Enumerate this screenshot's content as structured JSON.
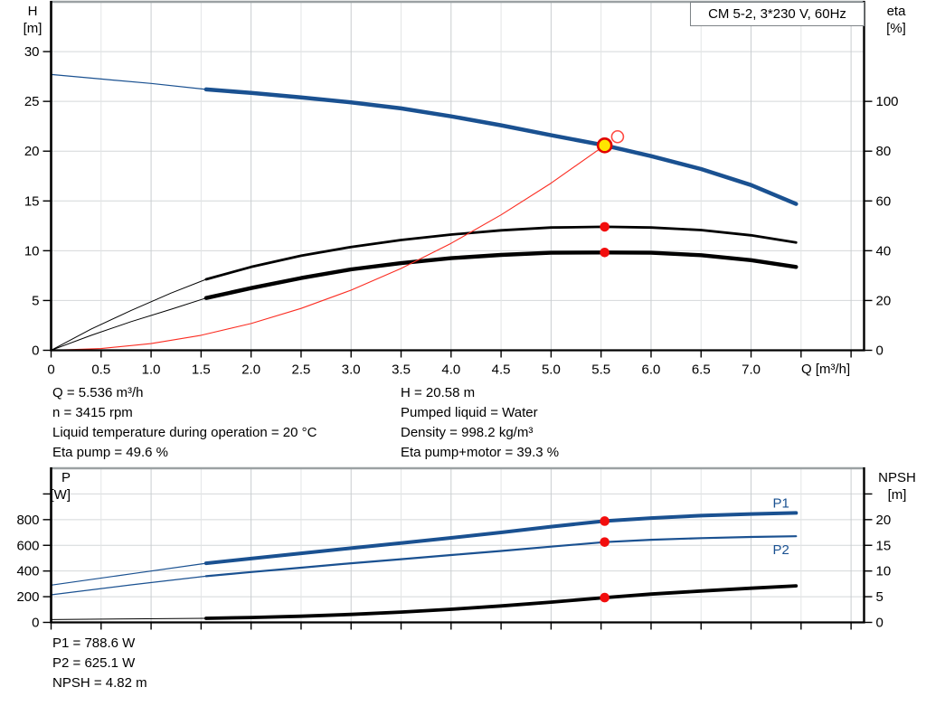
{
  "title_box": {
    "text": "CM 5-2, 3*230 V, 60Hz"
  },
  "colors": {
    "curve_blue": "#1a5191",
    "curve_black": "#000000",
    "curve_red": "#fb2d22",
    "dot_red": "#f20d0d",
    "duty_yellow": "#ffe600",
    "duty_ring": "#e00000",
    "open_ring": "#ff4a42",
    "grid_major": "#c9cdd0",
    "grid_minor": "#e3e5e6",
    "grid_h": "#d4d7d9",
    "border_gray": "#9ba1a3",
    "axis_black": "#000000"
  },
  "info_top": {
    "left": [
      "Q = 5.536 m³/h",
      "n = 3415 rpm",
      "Liquid temperature during operation = 20 °C",
      "Eta pump = 49.6 %"
    ],
    "right": [
      "H = 20.58 m",
      "Pumped liquid = Water",
      "Density = 998.2 kg/m³",
      "Eta pump+motor = 39.3 %"
    ]
  },
  "info_bottom": [
    "P1 = 788.6 W",
    "P2 = 625.1 W",
    "NPSH = 4.82 m"
  ],
  "chart_data": [
    {
      "type": "line",
      "x": {
        "label": "Q [m³/h]",
        "min": 0,
        "max": 8.13,
        "tick_step": 0.5,
        "labeled_max": 7
      },
      "y_left": {
        "label_lines": [
          "H",
          "[m]"
        ],
        "min": 0,
        "max": 35,
        "ticks": [
          0,
          5,
          10,
          15,
          20,
          25,
          30
        ],
        "extra_ticks": []
      },
      "y_right": {
        "label_lines": [
          "eta",
          "[%]"
        ],
        "min": 0,
        "max": 140,
        "ticks": [
          0,
          20,
          40,
          60,
          80,
          100
        ],
        "extra_ticks": []
      },
      "series": [
        {
          "name": "head-curve-ext",
          "axis": "left",
          "color": "blue",
          "width": 1.2,
          "points": [
            [
              0,
              27.7
            ],
            [
              0.5,
              27.25
            ],
            [
              1.0,
              26.8
            ],
            [
              1.55,
              26.2
            ]
          ]
        },
        {
          "name": "head-curve",
          "axis": "left",
          "color": "blue",
          "width": 4.5,
          "points": [
            [
              1.55,
              26.2
            ],
            [
              2,
              25.85
            ],
            [
              2.5,
              25.4
            ],
            [
              3,
              24.9
            ],
            [
              3.5,
              24.3
            ],
            [
              4,
              23.5
            ],
            [
              4.5,
              22.6
            ],
            [
              5,
              21.6
            ],
            [
              5.536,
              20.58
            ],
            [
              6,
              19.5
            ],
            [
              6.5,
              18.2
            ],
            [
              7,
              16.6
            ],
            [
              7.45,
              14.7
            ]
          ]
        },
        {
          "name": "eta-pump-curve-ext",
          "axis": "right",
          "color": "black",
          "width": 1,
          "points": [
            [
              0,
              0
            ],
            [
              0.4,
              8.5
            ],
            [
              0.8,
              16
            ],
            [
              1.2,
              23
            ],
            [
              1.55,
              28.5
            ]
          ]
        },
        {
          "name": "eta-pump-curve",
          "axis": "right",
          "color": "black",
          "width": 2.8,
          "points": [
            [
              1.55,
              28.5
            ],
            [
              2,
              33.5
            ],
            [
              2.5,
              38
            ],
            [
              3,
              41.5
            ],
            [
              3.5,
              44.3
            ],
            [
              4,
              46.5
            ],
            [
              4.5,
              48.2
            ],
            [
              5,
              49.3
            ],
            [
              5.536,
              49.6
            ],
            [
              6,
              49.3
            ],
            [
              6.5,
              48.3
            ],
            [
              7,
              46.2
            ],
            [
              7.45,
              43.3
            ]
          ]
        },
        {
          "name": "eta-pump-motor-curve-ext",
          "axis": "right",
          "color": "black",
          "width": 1,
          "points": [
            [
              0,
              0
            ],
            [
              0.4,
              6
            ],
            [
              0.8,
              11.5
            ],
            [
              1.2,
              16.5
            ],
            [
              1.55,
              21
            ]
          ]
        },
        {
          "name": "eta-pump-motor-curve",
          "axis": "right",
          "color": "black",
          "width": 4.4,
          "points": [
            [
              1.55,
              21
            ],
            [
              2,
              25
            ],
            [
              2.5,
              29
            ],
            [
              3,
              32.5
            ],
            [
              3.5,
              35
            ],
            [
              4,
              37
            ],
            [
              4.5,
              38.3
            ],
            [
              5,
              39.2
            ],
            [
              5.536,
              39.3
            ],
            [
              6,
              39.2
            ],
            [
              6.5,
              38.2
            ],
            [
              7,
              36.2
            ],
            [
              7.45,
              33.5
            ]
          ]
        },
        {
          "name": "system-curve",
          "axis": "left",
          "color": "red",
          "width": 1.1,
          "points": [
            [
              0,
              0
            ],
            [
              0.5,
              0.17
            ],
            [
              1,
              0.67
            ],
            [
              1.5,
              1.51
            ],
            [
              2,
              2.69
            ],
            [
              2.5,
              4.2
            ],
            [
              3,
              6.04
            ],
            [
              3.5,
              8.22
            ],
            [
              4,
              10.74
            ],
            [
              4.5,
              13.6
            ],
            [
              5,
              16.79
            ],
            [
              5.536,
              20.58
            ]
          ]
        }
      ],
      "markers": [
        {
          "name": "duty-point-marker",
          "axis": "left",
          "q": 5.536,
          "v": 20.58,
          "style": "duty"
        },
        {
          "name": "rated-point-marker",
          "axis": "left",
          "q": 5.665,
          "v": 21.45,
          "style": "open"
        },
        {
          "name": "eta-pump-point",
          "axis": "right",
          "q": 5.536,
          "v": 49.6,
          "style": "dot"
        },
        {
          "name": "eta-pump-motor-point",
          "axis": "right",
          "q": 5.536,
          "v": 39.3,
          "style": "dot"
        }
      ],
      "annotations": []
    },
    {
      "type": "line",
      "x": {
        "label": "",
        "min": 0,
        "max": 8.13,
        "tick_step": 0.5,
        "labeled_max": -1
      },
      "y_left": {
        "label_lines": [
          "P",
          "[W]"
        ],
        "min": 0,
        "max": 1200,
        "ticks": [
          0,
          200,
          400,
          600,
          800
        ],
        "extra_ticks": [
          1000
        ]
      },
      "y_right": {
        "label_lines": [
          "NPSH",
          "[m]"
        ],
        "min": 0,
        "max": 30,
        "ticks": [
          0,
          5,
          10,
          15,
          20
        ],
        "extra_ticks": [
          25
        ]
      },
      "series": [
        {
          "name": "p1-curve-ext",
          "axis": "left",
          "color": "blue",
          "width": 1.2,
          "points": [
            [
              0,
              290
            ],
            [
              0.8,
              378
            ],
            [
              1.55,
              460
            ]
          ]
        },
        {
          "name": "p1-curve",
          "axis": "left",
          "color": "blue",
          "width": 4,
          "points": [
            [
              1.55,
              460
            ],
            [
              2,
              497
            ],
            [
              2.5,
              538
            ],
            [
              3,
              578
            ],
            [
              3.5,
              618
            ],
            [
              4,
              658
            ],
            [
              4.5,
              700
            ],
            [
              5,
              745
            ],
            [
              5.536,
              789
            ],
            [
              6,
              812
            ],
            [
              6.5,
              831
            ],
            [
              7,
              844
            ],
            [
              7.45,
              852
            ]
          ]
        },
        {
          "name": "p2-curve-ext",
          "axis": "left",
          "color": "blue",
          "width": 1.2,
          "points": [
            [
              0,
              215
            ],
            [
              0.8,
              292
            ],
            [
              1.55,
              360
            ]
          ]
        },
        {
          "name": "p2-curve",
          "axis": "left",
          "color": "blue",
          "width": 2.2,
          "points": [
            [
              1.55,
              360
            ],
            [
              2,
              392
            ],
            [
              2.5,
              426
            ],
            [
              3,
              460
            ],
            [
              3.5,
              492
            ],
            [
              4,
              524
            ],
            [
              4.5,
              556
            ],
            [
              5,
              590
            ],
            [
              5.536,
              625
            ],
            [
              6,
              643
            ],
            [
              6.5,
              656
            ],
            [
              7,
              665
            ],
            [
              7.45,
              671
            ]
          ]
        },
        {
          "name": "npsh-curve-ext",
          "axis": "right",
          "color": "black",
          "width": 1,
          "points": [
            [
              0,
              0.55
            ],
            [
              0.8,
              0.68
            ],
            [
              1.55,
              0.8
            ]
          ]
        },
        {
          "name": "npsh-curve",
          "axis": "right",
          "color": "black",
          "width": 3.8,
          "points": [
            [
              1.55,
              0.8
            ],
            [
              2,
              0.95
            ],
            [
              2.5,
              1.2
            ],
            [
              3,
              1.55
            ],
            [
              3.5,
              2.0
            ],
            [
              4,
              2.55
            ],
            [
              4.5,
              3.2
            ],
            [
              5,
              3.95
            ],
            [
              5.536,
              4.82
            ],
            [
              6,
              5.5
            ],
            [
              6.5,
              6.1
            ],
            [
              7,
              6.65
            ],
            [
              7.45,
              7.1
            ]
          ]
        }
      ],
      "markers": [
        {
          "name": "p1-point",
          "axis": "left",
          "q": 5.536,
          "v": 788.6,
          "style": "dot"
        },
        {
          "name": "p2-point",
          "axis": "left",
          "q": 5.536,
          "v": 625.1,
          "style": "dot"
        },
        {
          "name": "npsh-point",
          "axis": "right",
          "q": 5.536,
          "v": 4.82,
          "style": "dot"
        }
      ],
      "annotations": [
        {
          "text": "P1",
          "q": 7.3,
          "v": 930,
          "axis": "left"
        },
        {
          "text": "P2",
          "q": 7.3,
          "v": 567,
          "axis": "left"
        }
      ]
    }
  ]
}
